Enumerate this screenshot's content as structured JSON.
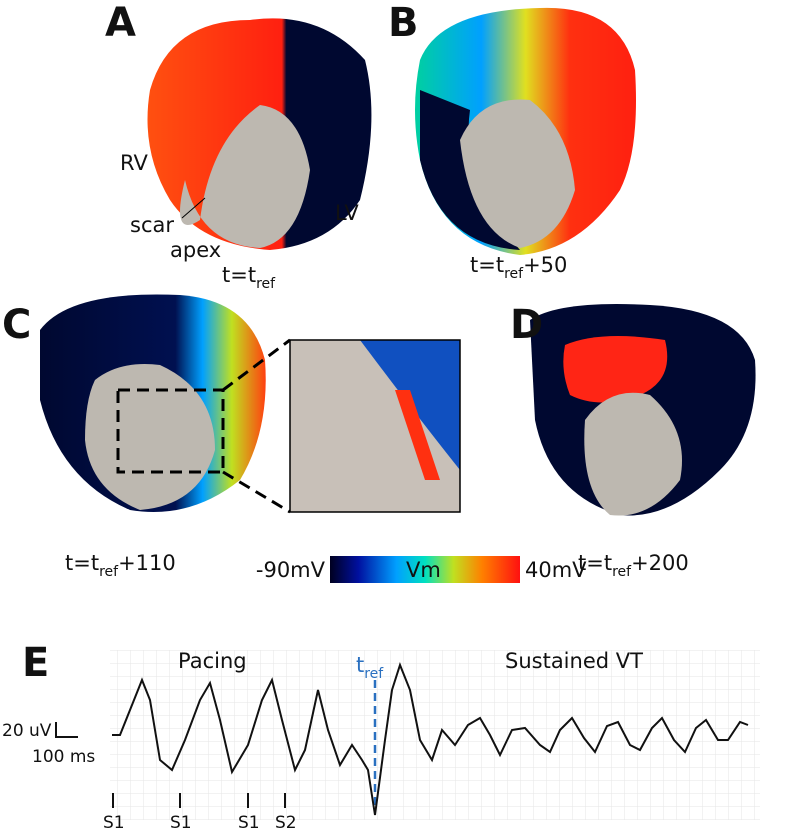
{
  "panels": [
    {
      "label": "A",
      "time": {
        "prefix": "t=t",
        "sub": "ref"
      },
      "annotations": [
        "RV",
        "scar",
        "apex",
        "LV"
      ]
    },
    {
      "label": "B",
      "time": {
        "prefix": "t=t",
        "sub": "ref",
        "suffix": "+50"
      }
    },
    {
      "label": "C",
      "time": {
        "prefix": "t=t",
        "sub": "ref",
        "suffix": "+110"
      }
    },
    {
      "label": "D",
      "time": {
        "prefix": "t=t",
        "sub": "ref",
        "suffix": "+200"
      }
    }
  ],
  "colorbar": {
    "min": "-90mV",
    "name": "Vm",
    "max": "40mV"
  },
  "trace": {
    "label": "E",
    "t_ref": {
      "main": "t",
      "sub": "ref"
    },
    "phases": [
      "Pacing",
      "Sustained VT"
    ],
    "scale": {
      "voltage": "20 uV",
      "time": "100 ms"
    },
    "stimuli": [
      "S1",
      "S1",
      "S1",
      "S2"
    ]
  }
}
